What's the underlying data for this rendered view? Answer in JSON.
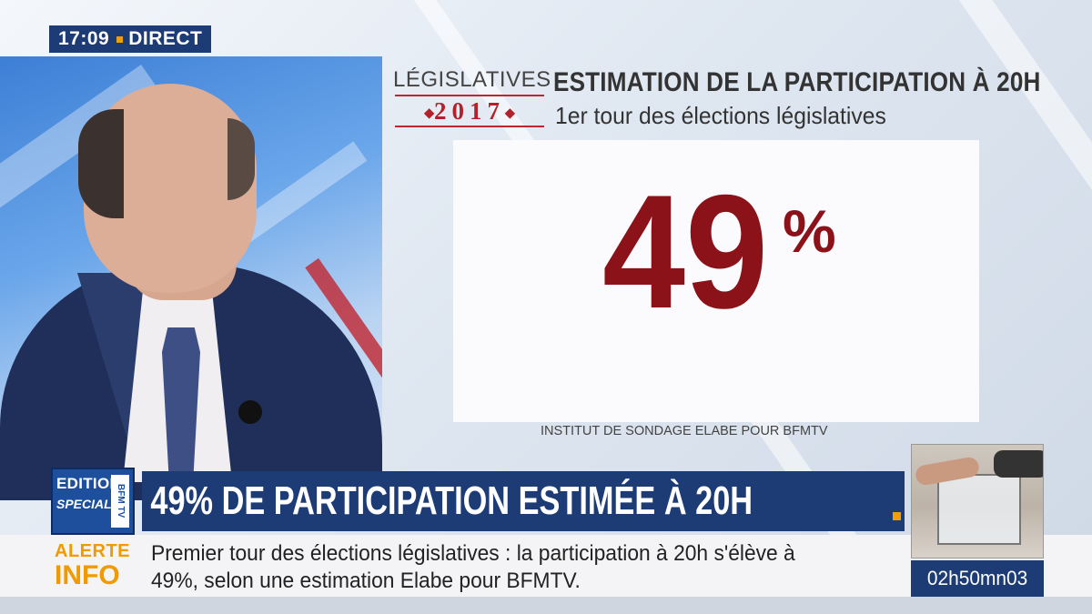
{
  "live": {
    "time": "17:09",
    "label": "DIRECT"
  },
  "graphic": {
    "logo_word": "LÉGISLATIVES",
    "logo_year": "2017",
    "logo_diamonds": "◆",
    "title": "ESTIMATION DE LA PARTICIPATION À 20H",
    "subtitle": "1er tour des élections législatives",
    "value": "49",
    "value_unit": "%",
    "source": "INSTITUT DE SONDAGE ELABE POUR BFMTV"
  },
  "lower_third": {
    "badge_line1": "EDITION",
    "badge_line2": "SPECIALE",
    "badge_brand": "BFM TV",
    "headline": "49% DE PARTICIPATION ESTIMÉE À 20H"
  },
  "ticker": {
    "label_line1": "ALERTE",
    "label_line2": "INFO",
    "text_line1": "Premier tour des élections législatives : la participation à 20h s'élève à",
    "text_line2": "49%, selon une estimation Elabe pour BFMTV."
  },
  "countdown": "02h50mn03",
  "colors": {
    "navy": "#1d3b74",
    "accent_orange": "#f09a00",
    "value_red": "#8c1219",
    "logo_red": "#b3212a"
  }
}
